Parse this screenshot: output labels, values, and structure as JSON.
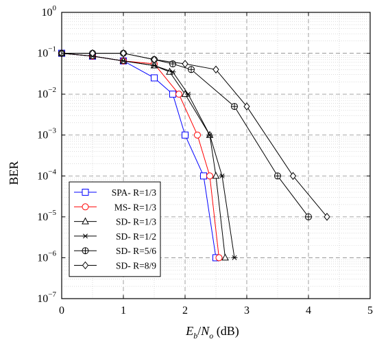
{
  "chart_data": {
    "type": "line",
    "xlabel": "E_b/N_o (dB)",
    "xlabel_parts": {
      "var1": "E",
      "sub1": "b",
      "slash": "/",
      "var2": "N",
      "sub2": "o",
      "unit": " (dB)"
    },
    "ylabel": "BER",
    "xlim": [
      0,
      5
    ],
    "ylim_log10": [
      -7,
      0
    ],
    "y_scale": "log",
    "x_ticks": [
      "0",
      "1",
      "2",
      "3",
      "4",
      "5"
    ],
    "y_tick_base": "10",
    "y_tick_exponents": [
      "0",
      "−1",
      "−2",
      "−3",
      "−4",
      "−5",
      "−6",
      "−7"
    ],
    "grid": true,
    "legend_position": "bottom-left",
    "series": [
      {
        "name": "SPA- R=1/3",
        "color": "#0000ff",
        "marker": "square",
        "x": [
          0,
          0.5,
          1,
          1.5,
          1.8,
          2.0,
          2.3,
          2.5
        ],
        "y": [
          0.1,
          0.085,
          0.065,
          0.025,
          0.01,
          0.001,
          0.0001,
          1e-06
        ]
      },
      {
        "name": "MS- R=1/3",
        "color": "#ff0000",
        "marker": "circle",
        "x": [
          0,
          0.5,
          1,
          1.5,
          1.9,
          2.2,
          2.4,
          2.55
        ],
        "y": [
          0.1,
          0.085,
          0.065,
          0.055,
          0.01,
          0.001,
          0.0001,
          1e-06
        ]
      },
      {
        "name": "SD- R=1/3",
        "color": "#000000",
        "marker": "triangle",
        "x": [
          0,
          0.5,
          1,
          1.5,
          1.75,
          2.0,
          2.4,
          2.5,
          2.65
        ],
        "y": [
          0.1,
          0.085,
          0.065,
          0.05,
          0.035,
          0.01,
          0.001,
          0.0001,
          1e-06
        ]
      },
      {
        "name": "SD- R=1/2",
        "color": "#000000",
        "marker": "star",
        "x": [
          0,
          0.5,
          1,
          1.5,
          1.8,
          2.05,
          2.4,
          2.6,
          2.8
        ],
        "y": [
          0.1,
          0.085,
          0.065,
          0.05,
          0.035,
          0.01,
          0.001,
          0.0001,
          1e-06
        ]
      },
      {
        "name": "SD- R=5/6",
        "color": "#000000",
        "marker": "circleplus",
        "x": [
          0,
          0.5,
          1,
          1.5,
          1.8,
          2.1,
          2.8,
          3.5,
          4.0
        ],
        "y": [
          0.1,
          0.1,
          0.1,
          0.07,
          0.055,
          0.04,
          0.005,
          0.0001,
          1e-05
        ]
      },
      {
        "name": "SD- R=8/9",
        "color": "#000000",
        "marker": "diamond",
        "x": [
          0,
          0.5,
          1,
          1.5,
          2.0,
          2.5,
          3.0,
          3.75,
          4.3
        ],
        "y": [
          0.1,
          0.1,
          0.1,
          0.07,
          0.055,
          0.04,
          0.005,
          0.0001,
          1e-05
        ]
      }
    ]
  }
}
